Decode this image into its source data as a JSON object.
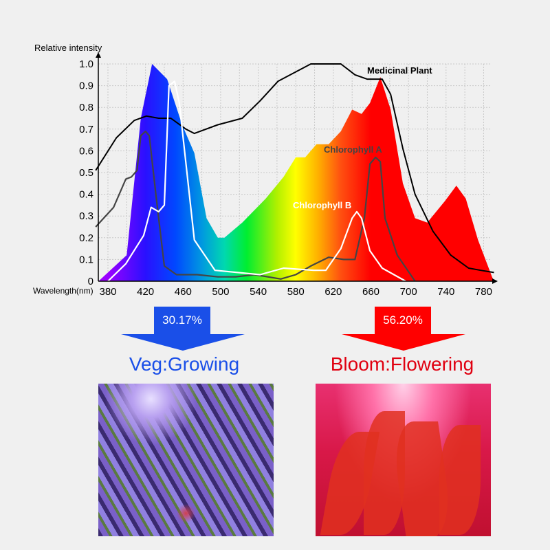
{
  "chart_data": {
    "type": "area",
    "ylabel": "Relative intensity",
    "xlabel": "Wavelength(nm)",
    "x_ticks": [
      380,
      420,
      460,
      500,
      540,
      580,
      620,
      660,
      700,
      740,
      780
    ],
    "y_ticks": [
      "0",
      "0.1",
      "0.2",
      "0.3",
      "0.4",
      "0.5",
      "0.6",
      "0.7",
      "0.8",
      "0.9",
      "1.0"
    ],
    "xlim": [
      367,
      791
    ],
    "ylim": [
      0,
      1.0
    ],
    "grid": true,
    "series": [
      {
        "key": "led",
        "fill": "spectrum-gradient",
        "points": [
          [
            370,
            0
          ],
          [
            400,
            0.12
          ],
          [
            415,
            0.75
          ],
          [
            427,
            1.0
          ],
          [
            443,
            0.93
          ],
          [
            459,
            0.72
          ],
          [
            472,
            0.59
          ],
          [
            485,
            0.29
          ],
          [
            497,
            0.2
          ],
          [
            504,
            0.2
          ],
          [
            523,
            0.27
          ],
          [
            548,
            0.38
          ],
          [
            567,
            0.48
          ],
          [
            580,
            0.57
          ],
          [
            590,
            0.57
          ],
          [
            602,
            0.63
          ],
          [
            615,
            0.63
          ],
          [
            628,
            0.69
          ],
          [
            640,
            0.79
          ],
          [
            650,
            0.77
          ],
          [
            659,
            0.82
          ],
          [
            670,
            0.94
          ],
          [
            681,
            0.79
          ],
          [
            694,
            0.45
          ],
          [
            707,
            0.29
          ],
          [
            720,
            0.27
          ],
          [
            739,
            0.37
          ],
          [
            751,
            0.44
          ],
          [
            761,
            0.38
          ],
          [
            774,
            0.19
          ],
          [
            789,
            0.02
          ],
          [
            791,
            0
          ]
        ]
      },
      {
        "key": "medicinal",
        "name": "Medicinal Plant",
        "color": "#000000",
        "points": [
          [
            367,
            0.51
          ],
          [
            389,
            0.66
          ],
          [
            408,
            0.74
          ],
          [
            421,
            0.76
          ],
          [
            434,
            0.75
          ],
          [
            447,
            0.75
          ],
          [
            463,
            0.7
          ],
          [
            472,
            0.68
          ],
          [
            497,
            0.72
          ],
          [
            523,
            0.75
          ],
          [
            542,
            0.83
          ],
          [
            561,
            0.92
          ],
          [
            596,
            1.0
          ],
          [
            628,
            1.0
          ],
          [
            643,
            0.95
          ],
          [
            656,
            0.93
          ],
          [
            672,
            0.93
          ],
          [
            681,
            0.86
          ],
          [
            694,
            0.61
          ],
          [
            707,
            0.4
          ],
          [
            726,
            0.23
          ],
          [
            745,
            0.12
          ],
          [
            764,
            0.06
          ],
          [
            777,
            0.05
          ],
          [
            791,
            0.04
          ]
        ]
      },
      {
        "key": "chla",
        "name": "Chlorophyll A",
        "color": "#444444",
        "points": [
          [
            367,
            0.25
          ],
          [
            386,
            0.34
          ],
          [
            399,
            0.47
          ],
          [
            405,
            0.48
          ],
          [
            411,
            0.51
          ],
          [
            415,
            0.67
          ],
          [
            420,
            0.69
          ],
          [
            424,
            0.67
          ],
          [
            431,
            0.4
          ],
          [
            440,
            0.07
          ],
          [
            453,
            0.03
          ],
          [
            475,
            0.03
          ],
          [
            497,
            0.02
          ],
          [
            516,
            0.02
          ],
          [
            536,
            0.03
          ],
          [
            564,
            0.01
          ],
          [
            580,
            0.03
          ],
          [
            596,
            0.07
          ],
          [
            615,
            0.11
          ],
          [
            631,
            0.1
          ],
          [
            643,
            0.1
          ],
          [
            653,
            0.29
          ],
          [
            659,
            0.54
          ],
          [
            665,
            0.57
          ],
          [
            670,
            0.55
          ],
          [
            675,
            0.29
          ],
          [
            688,
            0.12
          ],
          [
            707,
            0
          ]
        ]
      },
      {
        "key": "chlb",
        "name": "Chlorophyll B",
        "color": "#ffffff",
        "points": [
          [
            380,
            0
          ],
          [
            399,
            0.08
          ],
          [
            418,
            0.21
          ],
          [
            426,
            0.34
          ],
          [
            434,
            0.32
          ],
          [
            440,
            0.35
          ],
          [
            445,
            0.9
          ],
          [
            451,
            0.92
          ],
          [
            456,
            0.82
          ],
          [
            472,
            0.19
          ],
          [
            494,
            0.05
          ],
          [
            542,
            0.03
          ],
          [
            567,
            0.06
          ],
          [
            599,
            0.05
          ],
          [
            612,
            0.05
          ],
          [
            628,
            0.15
          ],
          [
            640,
            0.29
          ],
          [
            645,
            0.32
          ],
          [
            650,
            0.29
          ],
          [
            659,
            0.14
          ],
          [
            672,
            0.06
          ],
          [
            697,
            0
          ]
        ]
      }
    ]
  },
  "bands": [
    {
      "percent": "30.17%",
      "label": "Veg:Growing",
      "color": "#1a4fe8"
    },
    {
      "percent": "56.20%",
      "label": "Bloom:Flowering",
      "color": "#ff0000"
    }
  ]
}
